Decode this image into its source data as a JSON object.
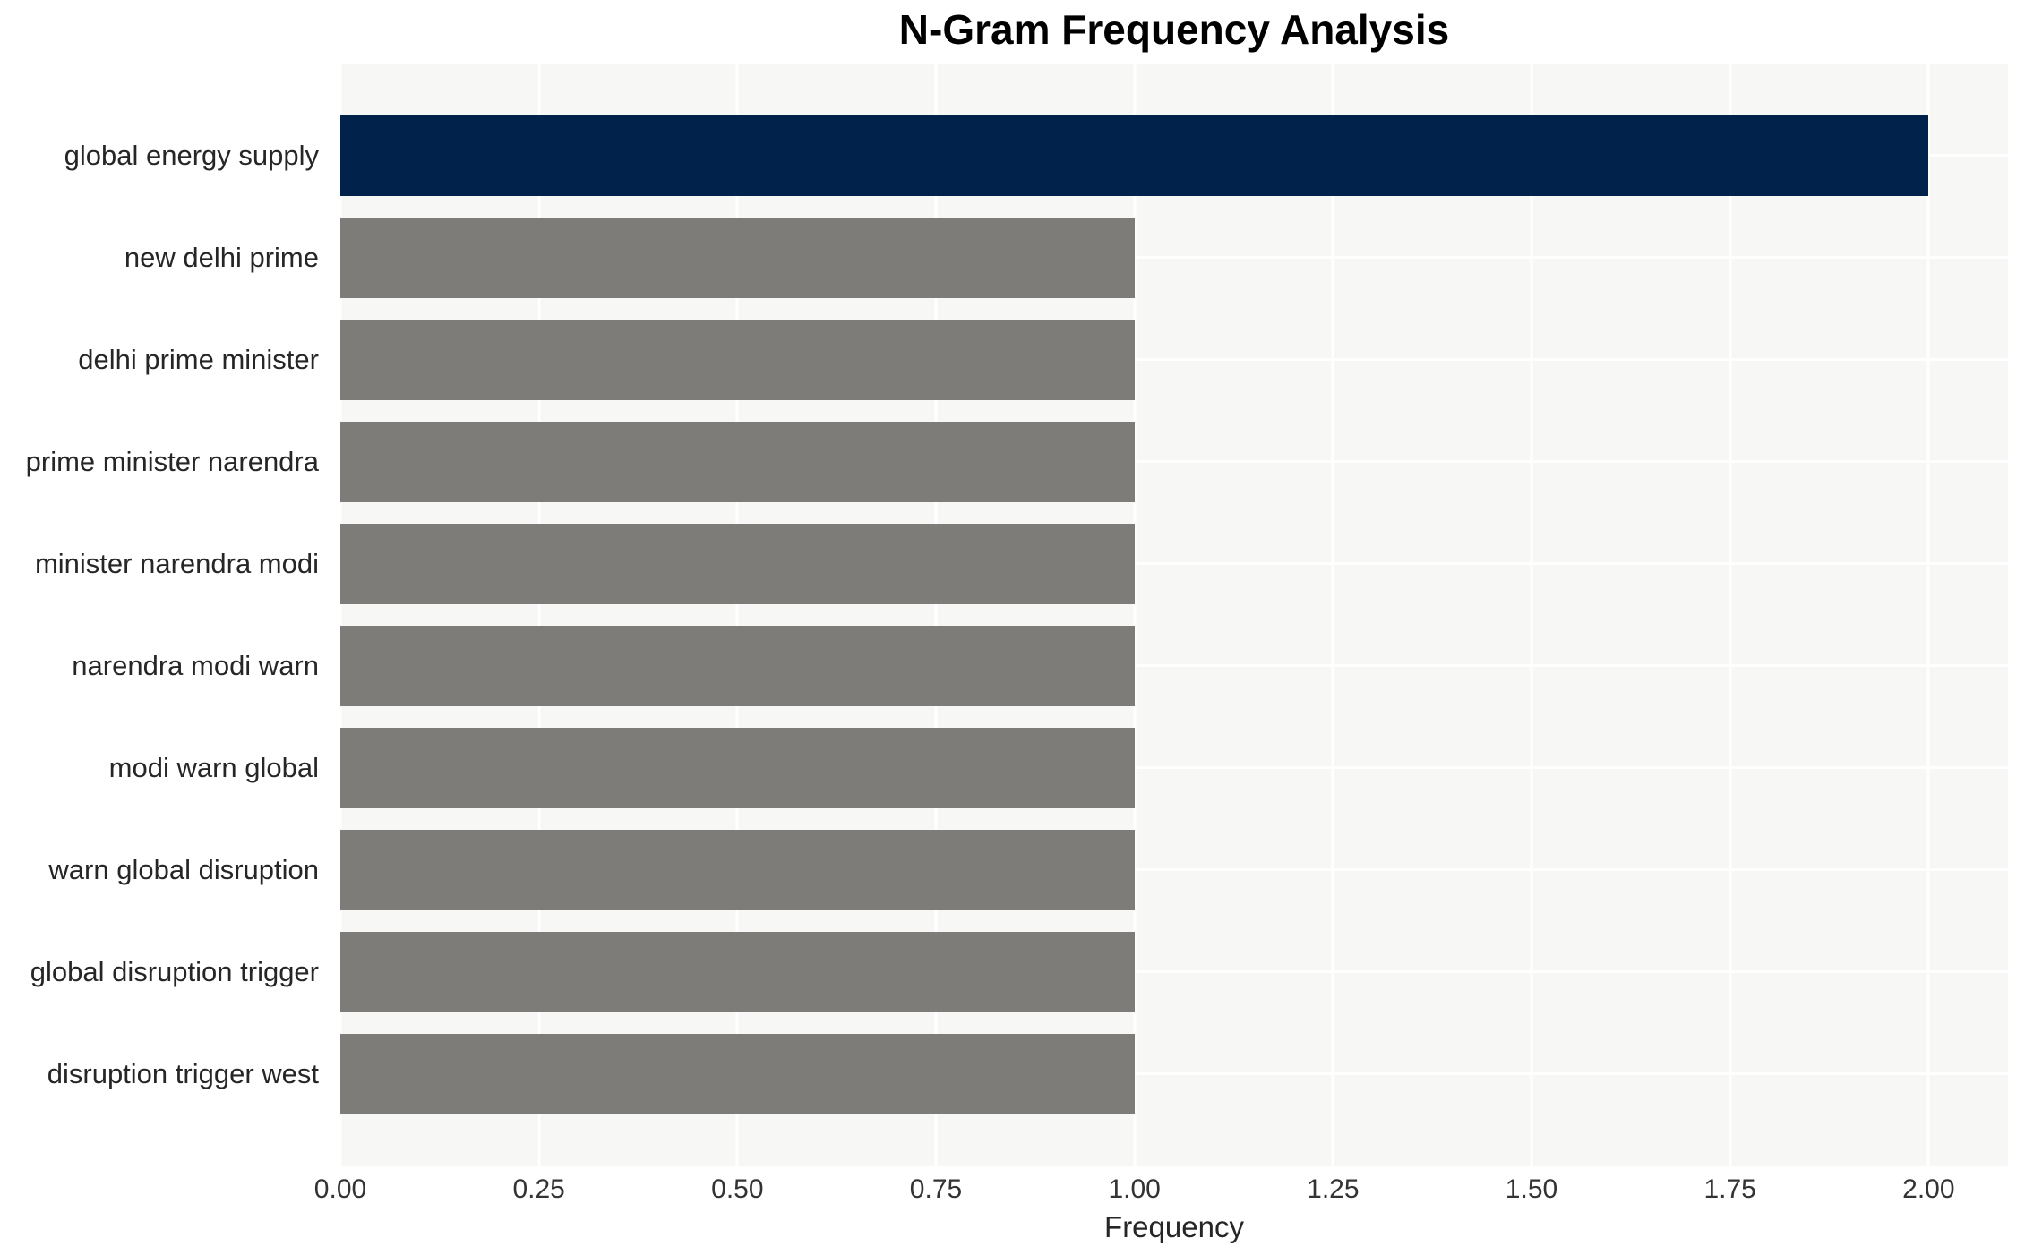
{
  "chart_data": {
    "type": "bar",
    "orientation": "horizontal",
    "title": "N-Gram Frequency Analysis",
    "xlabel": "Frequency",
    "ylabel": "",
    "categories": [
      "global energy supply",
      "new delhi prime",
      "delhi prime minister",
      "prime minister narendra",
      "minister narendra modi",
      "narendra modi warn",
      "modi warn global",
      "warn global disruption",
      "global disruption trigger",
      "disruption trigger west"
    ],
    "values": [
      2.0,
      1.0,
      1.0,
      1.0,
      1.0,
      1.0,
      1.0,
      1.0,
      1.0,
      1.0
    ],
    "highlight_index": 0,
    "bar_colors": {
      "highlight": "#01234b",
      "default": "#7d7c78"
    },
    "x_tick_labels": [
      "0.00",
      "0.25",
      "0.50",
      "0.75",
      "1.00",
      "1.25",
      "1.50",
      "1.75",
      "2.00"
    ],
    "x_tick_values": [
      0,
      0.25,
      0.5,
      0.75,
      1.0,
      1.25,
      1.5,
      1.75,
      2.0
    ],
    "xlim": [
      0,
      2.1
    ],
    "grid": {
      "show": true,
      "color": "#ffffff"
    },
    "plot_background": "#f7f7f6",
    "title_color": "#000000",
    "text_color": "#262626",
    "legend": null
  }
}
